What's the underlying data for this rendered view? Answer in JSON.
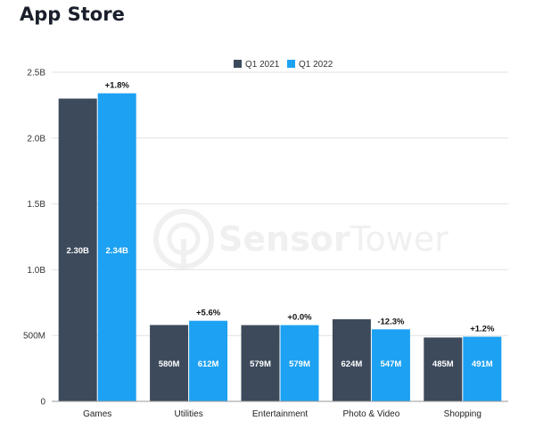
{
  "page": {
    "title": "App Store"
  },
  "watermark": {
    "brand_a": "Sensor",
    "brand_b": "Tower",
    "icon": "sensor-tower-logo-icon"
  },
  "colors": {
    "q1_2021": "#3d4a5c",
    "q1_2022": "#1da1f2",
    "grid": "#e2e2e2",
    "axis": "#999999"
  },
  "chart_data": {
    "type": "bar",
    "title": "App Store",
    "categories": [
      "Games",
      "Utilities",
      "Entertainment",
      "Photo & Video",
      "Shopping"
    ],
    "series": [
      {
        "name": "Q1 2021",
        "values": [
          2300,
          580,
          579,
          624,
          485
        ],
        "labels": [
          "2.30B",
          "580M",
          "579M",
          "624M",
          "485M"
        ],
        "color": "#3d4a5c"
      },
      {
        "name": "Q1 2022",
        "values": [
          2340,
          612,
          579,
          547,
          491
        ],
        "labels": [
          "2.34B",
          "612M",
          "579M",
          "547M",
          "491M"
        ],
        "color": "#1da1f2"
      }
    ],
    "changes": [
      "+1.8%",
      "+5.6%",
      "+0.0%",
      "-12.3%",
      "+1.2%"
    ],
    "unit": "millions",
    "ylim": [
      0,
      2500
    ],
    "yticks": [
      {
        "value": 0,
        "label": "0"
      },
      {
        "value": 500,
        "label": "500M"
      },
      {
        "value": 1000,
        "label": "1.0B"
      },
      {
        "value": 1500,
        "label": "1.5B"
      },
      {
        "value": 2000,
        "label": "2.0B"
      },
      {
        "value": 2500,
        "label": "2.5B"
      }
    ],
    "grid": true,
    "legend_position": "top-center",
    "xlabel": "",
    "ylabel": ""
  }
}
